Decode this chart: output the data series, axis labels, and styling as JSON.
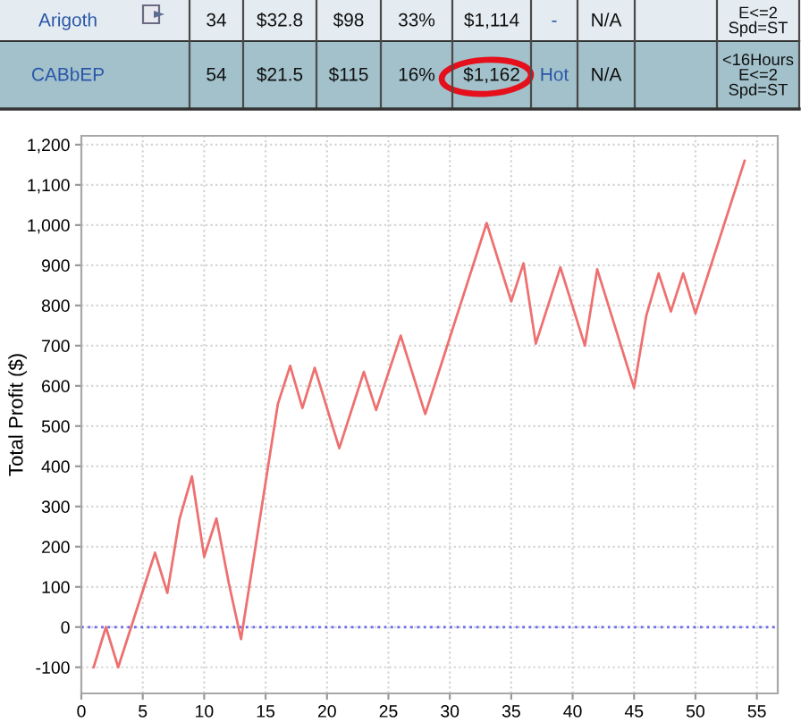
{
  "chart_data": [
    {
      "type": "other",
      "annotations": [
        "Arigoth",
        "34",
        "$32.8",
        "$98",
        "33%",
        "$1,114",
        "-",
        "N/A",
        "E<=2\nSpd=ST",
        "CABbEP",
        "54",
        "$21.5",
        "$115",
        "16%",
        "$1,162",
        "Hot",
        "N/A",
        "<16Hours\nE<=2\nSpd=ST"
      ]
    },
    {
      "type": "line",
      "ylabel": "Total Profit ($)",
      "series": [
        {
          "color": "#ee7070",
          "x": [
            1,
            2,
            3,
            6,
            7,
            8,
            9,
            10,
            11,
            12,
            13,
            16,
            17,
            18,
            19,
            21,
            23,
            24,
            26,
            28,
            33,
            35,
            36,
            37,
            39,
            41,
            42,
            45,
            46,
            47,
            48,
            49,
            50,
            54
          ],
          "values": [
            -100,
            0,
            -100,
            185,
            85,
            270,
            375,
            175,
            270,
            110,
            -30,
            555,
            650,
            545,
            645,
            445,
            635,
            540,
            725,
            530,
            1005,
            810,
            905,
            705,
            895,
            700,
            890,
            595,
            775,
            880,
            785,
            880,
            780,
            1160
          ]
        }
      ],
      "xlim": [
        0,
        56.7
      ],
      "xticks": [
        0,
        5,
        10,
        15,
        20,
        25,
        30,
        35,
        40,
        45,
        50,
        55
      ],
      "ylim": [
        -165,
        1222
      ],
      "yticks": [
        -100,
        0,
        100,
        200,
        300,
        400,
        500,
        600,
        700,
        800,
        900,
        {
          "value": 1000,
          "label": "1,000"
        },
        {
          "value": 1100,
          "label": "1,100"
        },
        {
          "value": 1200,
          "label": "1,200"
        }
      ],
      "grid": true,
      "ref_lines": [
        {
          "axis": "y",
          "value": 0,
          "color": "#6a6aee",
          "line_style": "dotted"
        }
      ]
    }
  ]
}
